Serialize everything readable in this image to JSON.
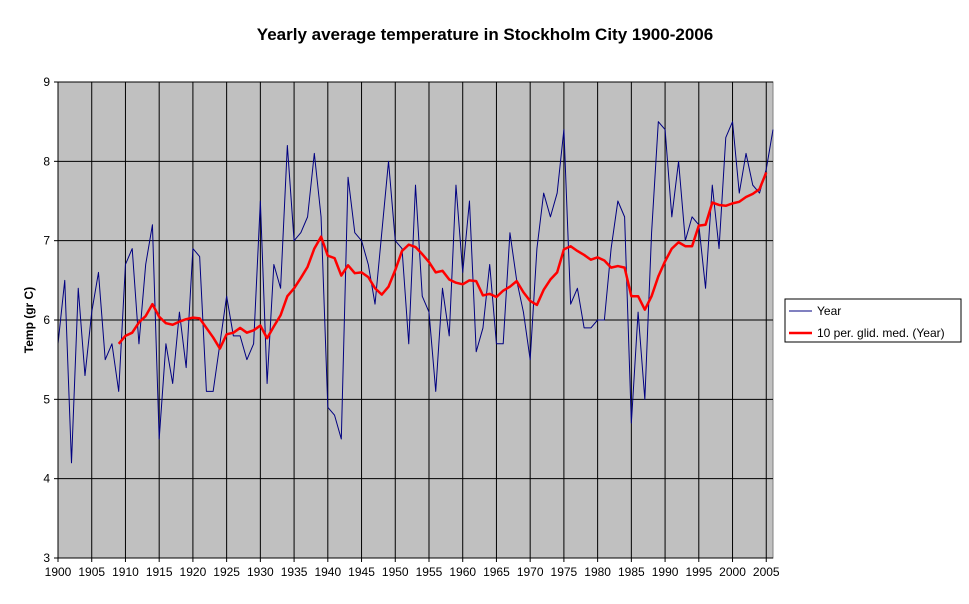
{
  "chart_data": {
    "type": "line",
    "title": "Yearly average temperature in Stockholm City 1900-2006",
    "xlabel": "",
    "ylabel": "Temp (gr C)",
    "xlim": [
      1900,
      2006
    ],
    "ylim": [
      3,
      9
    ],
    "yticks": [
      3,
      4,
      5,
      6,
      7,
      8,
      9
    ],
    "xticks": [
      1900,
      1905,
      1910,
      1915,
      1920,
      1925,
      1930,
      1935,
      1940,
      1945,
      1950,
      1955,
      1960,
      1965,
      1970,
      1975,
      1980,
      1985,
      1990,
      1995,
      2000,
      2005
    ],
    "grid": true,
    "legend_position": "right",
    "series": [
      {
        "name": "Year",
        "color": "#000080",
        "x_start": 1900,
        "values": [
          5.7,
          6.5,
          4.2,
          6.4,
          5.3,
          6.1,
          6.6,
          5.5,
          5.7,
          5.1,
          6.7,
          6.9,
          5.7,
          6.7,
          7.2,
          4.5,
          5.7,
          5.2,
          6.1,
          5.4,
          6.9,
          6.8,
          5.1,
          5.1,
          5.7,
          6.3,
          5.8,
          5.8,
          5.5,
          5.7,
          7.5,
          5.2,
          6.7,
          6.4,
          8.2,
          7.0,
          7.1,
          7.3,
          8.1,
          7.3,
          4.9,
          4.8,
          4.5,
          7.8,
          7.1,
          7.0,
          6.7,
          6.2,
          7.1,
          8.0,
          7.0,
          6.9,
          5.7,
          7.7,
          6.3,
          6.1,
          5.1,
          6.4,
          5.8,
          7.7,
          6.6,
          7.5,
          5.6,
          5.9,
          6.7,
          5.7,
          5.7,
          7.1,
          6.5,
          6.1,
          5.5,
          6.9,
          7.6,
          7.3,
          7.6,
          8.4,
          6.2,
          6.4,
          5.9,
          5.9,
          6.0,
          6.0,
          6.9,
          7.5,
          7.3,
          4.7,
          6.1,
          5.0,
          7.1,
          8.5,
          8.4,
          7.3,
          8.0,
          7.0,
          7.3,
          7.2,
          6.4,
          7.7,
          6.9,
          8.3,
          8.5,
          7.6,
          8.1,
          7.7,
          7.6,
          7.9,
          8.4
        ]
      },
      {
        "name": "10 per. glid. med. (Year)",
        "color": "#ff0000",
        "x_start": 1909,
        "values": [
          5.7,
          5.8,
          5.84,
          5.97,
          6.05,
          6.2,
          6.04,
          5.96,
          5.94,
          5.98,
          6.01,
          6.03,
          6.02,
          5.9,
          5.78,
          5.64,
          5.82,
          5.84,
          5.9,
          5.84,
          5.87,
          5.93,
          5.77,
          5.92,
          6.06,
          6.3,
          6.4,
          6.53,
          6.67,
          6.9,
          7.05,
          6.81,
          6.78,
          6.56,
          6.69,
          6.59,
          6.6,
          6.54,
          6.4,
          6.32,
          6.42,
          6.63,
          6.87,
          6.95,
          6.92,
          6.83,
          6.73,
          6.6,
          6.62,
          6.51,
          6.47,
          6.45,
          6.5,
          6.49,
          6.31,
          6.33,
          6.29,
          6.37,
          6.42,
          6.49,
          6.35,
          6.24,
          6.19,
          6.38,
          6.51,
          6.6,
          6.89,
          6.93,
          6.87,
          6.82,
          6.76,
          6.79,
          6.75,
          6.66,
          6.68,
          6.66,
          6.3,
          6.3,
          6.13,
          6.3,
          6.55,
          6.74,
          6.9,
          6.98,
          6.93,
          6.93,
          7.19,
          7.2,
          7.48,
          7.45,
          7.44,
          7.47,
          7.49,
          7.55,
          7.59,
          7.65,
          7.86
        ]
      }
    ]
  }
}
